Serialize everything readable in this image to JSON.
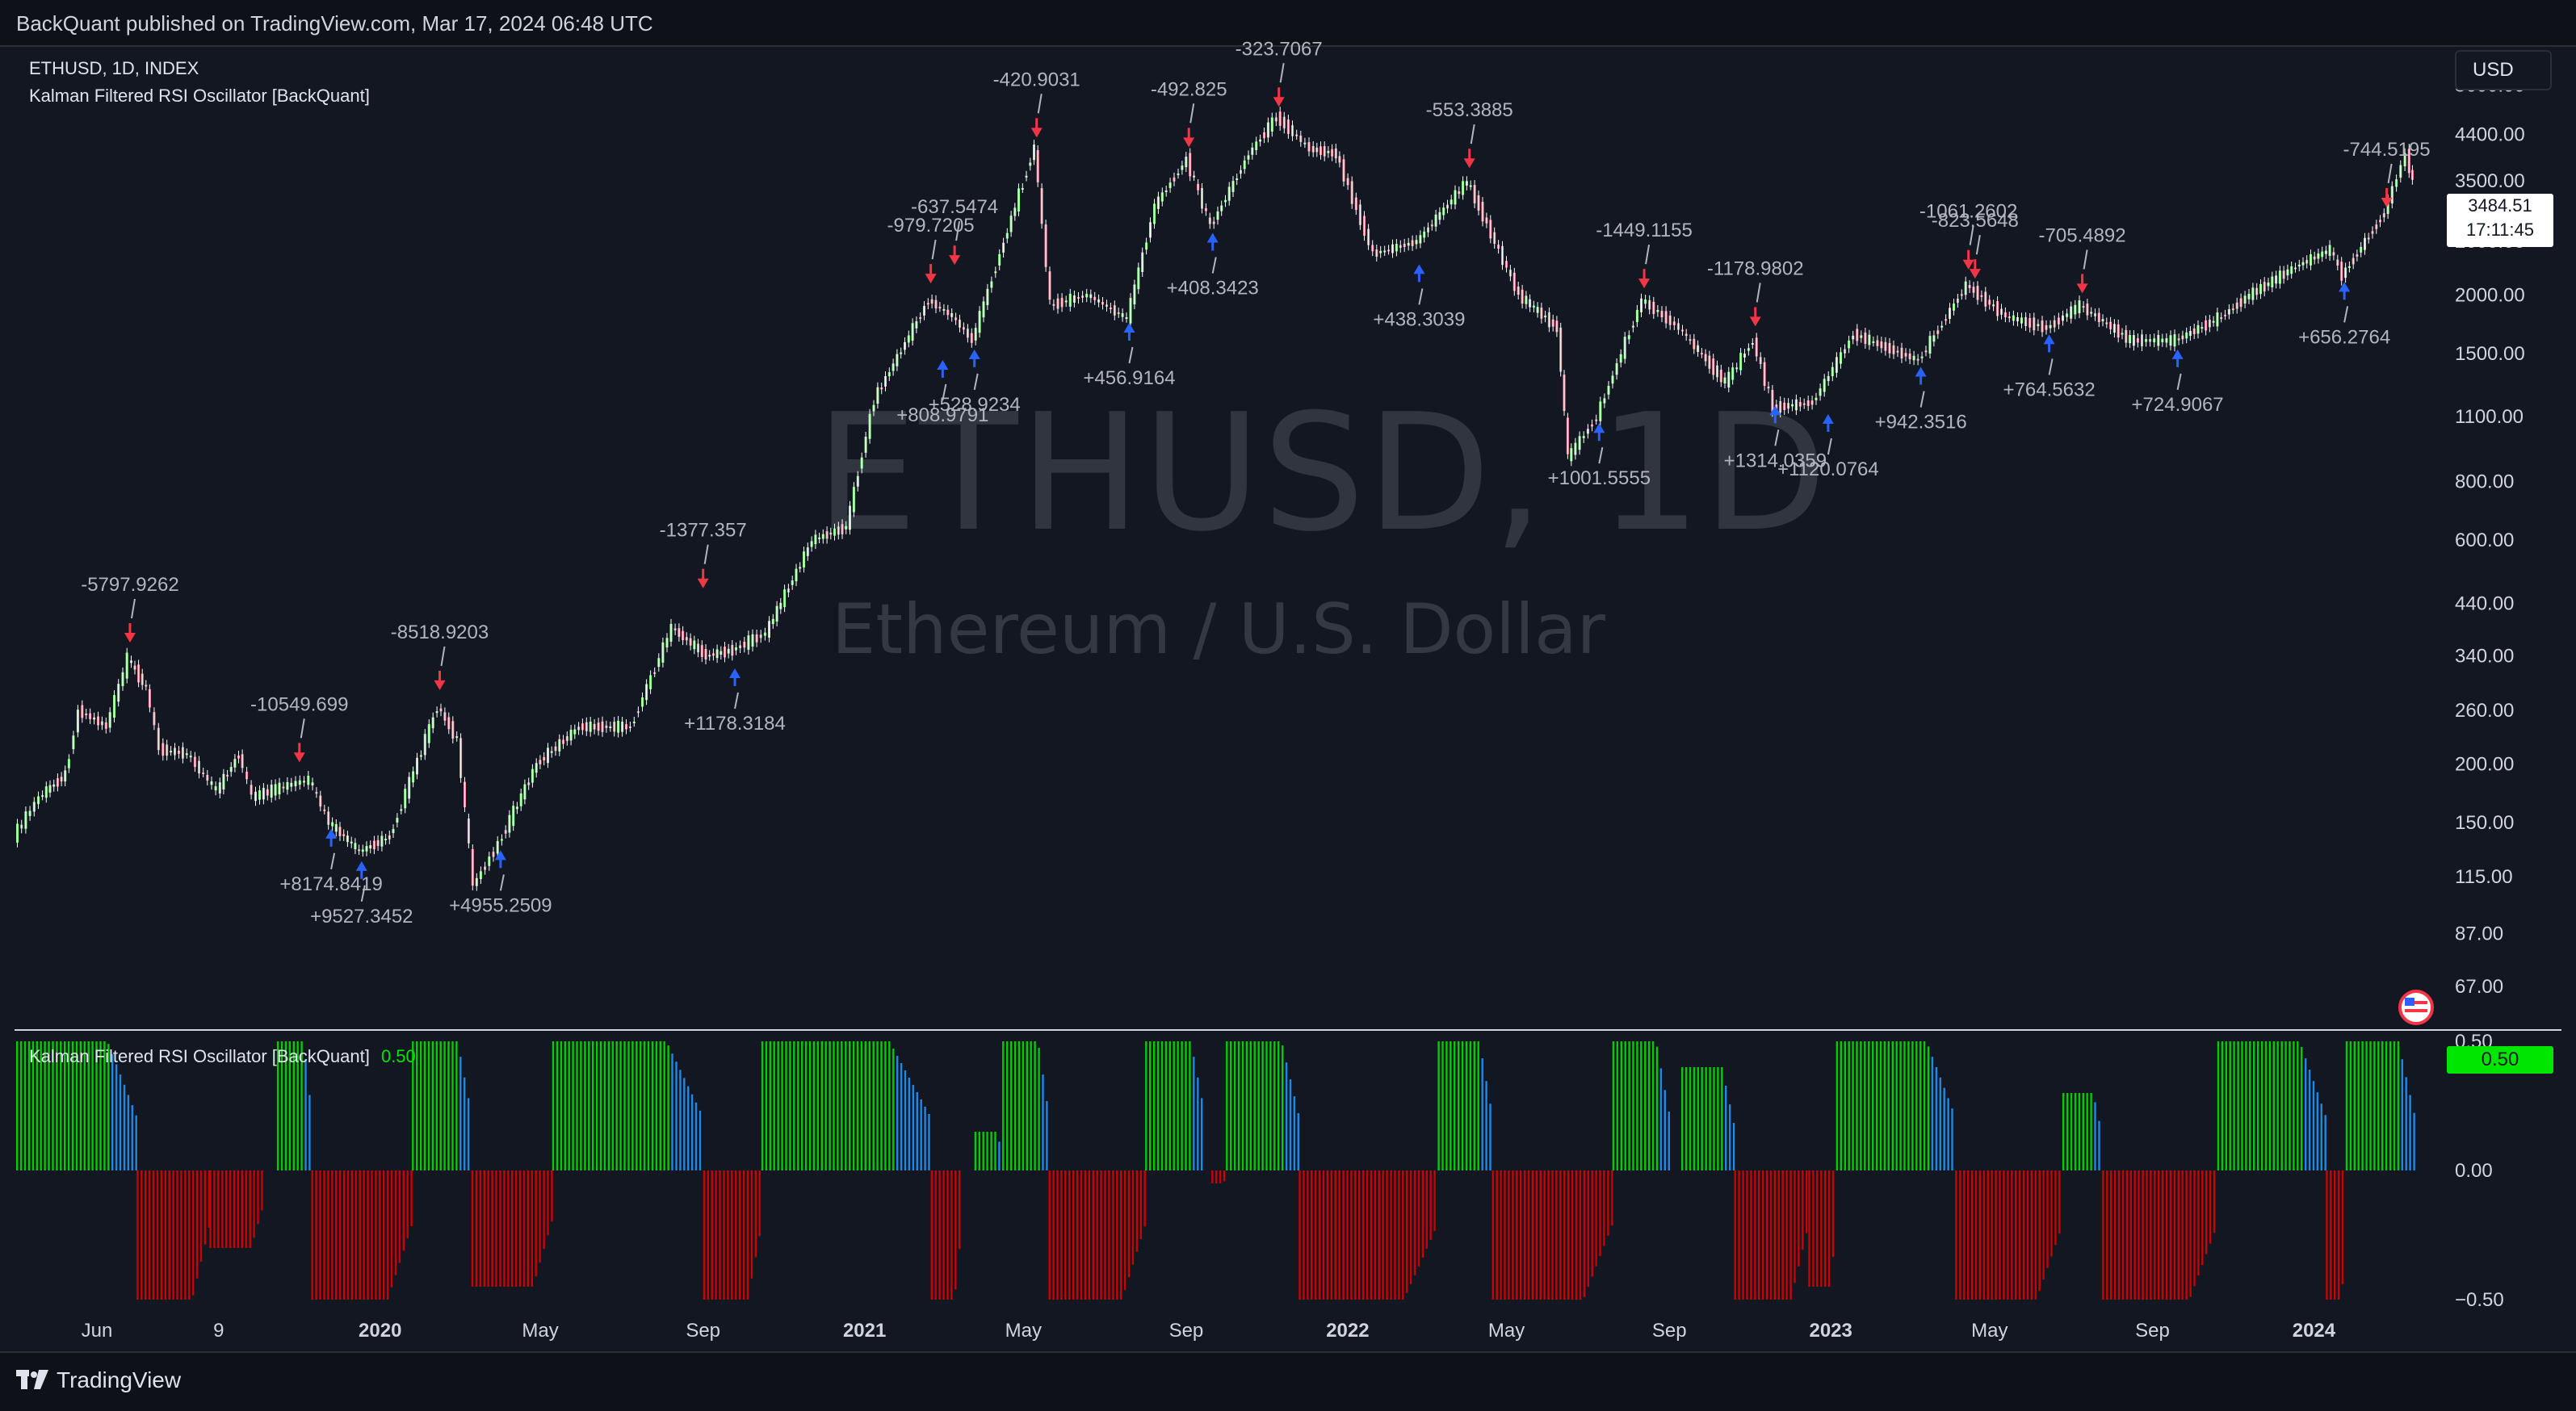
{
  "header": {
    "published": "BackQuant published on TradingView.com, Mar 17, 2024 06:48 UTC"
  },
  "legend": {
    "symbol": "ETHUSD, 1D, INDEX",
    "indicator": "Kalman Filtered RSI Oscillator [BackQuant]",
    "osc_title": "Kalman Filtered RSI Oscillator [BackQuant]",
    "osc_value": "0.50"
  },
  "currency_button": "USD",
  "watermark": {
    "title": "ETHUSD, 1D",
    "subtitle": "Ethereum / U.S. Dollar"
  },
  "last_price": {
    "value": "3484.51",
    "countdown": "17:11:45"
  },
  "footer": {
    "brand": "TradingView"
  },
  "colors": {
    "background": "#131722",
    "up_candle": "#8dff8d",
    "down_candle": "#ff8da0",
    "osc_positive": "#00cc00",
    "osc_negative": "#cc0000",
    "osc_transition": "#1e88e5",
    "buy_arrow": "#2962ff",
    "sell_arrow": "#f23645"
  },
  "chart_data": [
    {
      "type": "line",
      "title": "ETHUSD, 1D",
      "scale": "log",
      "ylim": [
        60,
        6200
      ],
      "y_ticks": [
        5600,
        4400,
        3500,
        2600,
        2000,
        1500,
        1100,
        800,
        600,
        440,
        340,
        260,
        200,
        150,
        115,
        87,
        67
      ],
      "y_tick_labels": [
        "5600.00",
        "4400.00",
        "3500.00",
        "2600.00",
        "2000.00",
        "1500.00",
        "1100.00",
        "800.00",
        "600.00",
        "440.00",
        "340.00",
        "260.00",
        "200.00",
        "150.00",
        "115.00",
        "87.00",
        "67.00"
      ],
      "x_tick_labels": [
        "Jun",
        "9",
        "2020",
        "May",
        "Sep",
        "2021",
        "May",
        "Sep",
        "2022",
        "May",
        "Sep",
        "2023",
        "May",
        "Sep",
        "2024"
      ],
      "x_tick_dates": [
        "2019-06-01",
        "2019-09-01",
        "2020-01-01",
        "2020-05-01",
        "2020-09-01",
        "2021-01-01",
        "2021-05-01",
        "2021-09-01",
        "2022-01-01",
        "2022-05-01",
        "2022-09-01",
        "2023-01-01",
        "2023-05-01",
        "2023-09-01",
        "2024-01-01"
      ],
      "x_range": [
        "2019-04-01",
        "2024-03-17"
      ],
      "series": [
        {
          "points": [
            [
              "2019-04-01",
              140
            ],
            [
              "2019-04-20",
              170
            ],
            [
              "2019-05-10",
              190
            ],
            [
              "2019-05-20",
              260
            ],
            [
              "2019-06-10",
              240
            ],
            [
              "2019-06-26",
              335
            ],
            [
              "2019-07-10",
              290
            ],
            [
              "2019-07-20",
              215
            ],
            [
              "2019-08-10",
              210
            ],
            [
              "2019-09-01",
              175
            ],
            [
              "2019-09-18",
              210
            ],
            [
              "2019-09-28",
              170
            ],
            [
              "2019-10-25",
              180
            ],
            [
              "2019-11-10",
              185
            ],
            [
              "2019-11-25",
              150
            ],
            [
              "2019-12-18",
              130
            ],
            [
              "2020-01-10",
              140
            ],
            [
              "2020-02-15",
              265
            ],
            [
              "2020-03-01",
              225
            ],
            [
              "2020-03-13",
              110
            ],
            [
              "2020-04-01",
              135
            ],
            [
              "2020-04-30",
              200
            ],
            [
              "2020-06-01",
              240
            ],
            [
              "2020-07-10",
              240
            ],
            [
              "2020-08-10",
              390
            ],
            [
              "2020-09-05",
              340
            ],
            [
              "2020-09-25",
              350
            ],
            [
              "2020-10-20",
              380
            ],
            [
              "2020-11-24",
              600
            ],
            [
              "2020-12-20",
              640
            ],
            [
              "2021-01-10",
              1200
            ],
            [
              "2021-02-20",
              1950
            ],
            [
              "2021-03-10",
              1800
            ],
            [
              "2021-03-25",
              1600
            ],
            [
              "2021-04-15",
              2450
            ],
            [
              "2021-05-11",
              4150
            ],
            [
              "2021-05-23",
              1900
            ],
            [
              "2021-06-20",
              2000
            ],
            [
              "2021-07-20",
              1780
            ],
            [
              "2021-08-10",
              3100
            ],
            [
              "2021-09-03",
              3900
            ],
            [
              "2021-09-21",
              2800
            ],
            [
              "2021-10-20",
              4000
            ],
            [
              "2021-11-10",
              4800
            ],
            [
              "2021-12-05",
              4100
            ],
            [
              "2021-12-25",
              4000
            ],
            [
              "2022-01-22",
              2450
            ],
            [
              "2022-02-24",
              2600
            ],
            [
              "2022-04-03",
              3500
            ],
            [
              "2022-05-12",
              2000
            ],
            [
              "2022-06-10",
              1700
            ],
            [
              "2022-06-18",
              900
            ],
            [
              "2022-07-10",
              1100
            ],
            [
              "2022-08-13",
              1950
            ],
            [
              "2022-09-10",
              1700
            ],
            [
              "2022-10-15",
              1300
            ],
            [
              "2022-11-05",
              1600
            ],
            [
              "2022-11-20",
              1150
            ],
            [
              "2022-12-20",
              1180
            ],
            [
              "2023-01-20",
              1650
            ],
            [
              "2023-03-10",
              1450
            ],
            [
              "2023-04-15",
              2100
            ],
            [
              "2023-05-15",
              1800
            ],
            [
              "2023-06-15",
              1700
            ],
            [
              "2023-07-10",
              1900
            ],
            [
              "2023-08-17",
              1600
            ],
            [
              "2023-09-20",
              1600
            ],
            [
              "2023-10-25",
              1800
            ],
            [
              "2023-11-15",
              2000
            ],
            [
              "2023-12-20",
              2300
            ],
            [
              "2024-01-15",
              2500
            ],
            [
              "2024-01-24",
              2200
            ],
            [
              "2024-02-25",
              3000
            ],
            [
              "2024-03-12",
              4000
            ],
            [
              "2024-03-17",
              3484
            ]
          ]
        }
      ],
      "annotations": [
        {
          "label": "-5797.9262",
          "date": "2019-06-26",
          "price": 360
        },
        {
          "label": "-10549.699",
          "date": "2019-11-01",
          "price": 200
        },
        {
          "label": "-8518.9203",
          "date": "2020-02-15",
          "price": 285
        },
        {
          "label": "-1377.357",
          "date": "2020-09-01",
          "price": 470
        },
        {
          "label": "-979.7205",
          "date": "2021-02-20",
          "price": 2100
        },
        {
          "label": "-637.5474",
          "date": "2021-03-10",
          "price": 2300
        },
        {
          "label": "-420.9031",
          "date": "2021-05-11",
          "price": 4300
        },
        {
          "label": "-492.825",
          "date": "2021-09-03",
          "price": 4100
        },
        {
          "label": "-323.7067",
          "date": "2021-11-10",
          "price": 5000
        },
        {
          "label": "-553.3885",
          "date": "2022-04-03",
          "price": 3700
        },
        {
          "label": "-1449.1155",
          "date": "2022-08-13",
          "price": 2050
        },
        {
          "label": "-1178.9802",
          "date": "2022-11-05",
          "price": 1700
        },
        {
          "label": "-1061.2602",
          "date": "2023-04-15",
          "price": 2250
        },
        {
          "label": "-823.5648",
          "date": "2023-04-20",
          "price": 2150
        },
        {
          "label": "-705.4892",
          "date": "2023-07-10",
          "price": 2000
        },
        {
          "label": "-744.5195",
          "date": "2024-02-25",
          "price": 3050
        },
        {
          "label": "+8174.8419",
          "date": "2019-11-25",
          "price": 150
        },
        {
          "label": "+9527.3452",
          "date": "2019-12-18",
          "price": 128
        },
        {
          "label": "+4955.2509",
          "date": "2020-04-01",
          "price": 135
        },
        {
          "label": "+1178.3184",
          "date": "2020-09-25",
          "price": 330
        },
        {
          "label": "+528.9234",
          "date": "2021-03-25",
          "price": 1580
        },
        {
          "label": "+808.9791",
          "date": "2021-03-01",
          "price": 1500
        },
        {
          "label": "+456.9164",
          "date": "2021-07-20",
          "price": 1800
        },
        {
          "label": "+408.3423",
          "date": "2021-09-21",
          "price": 2800
        },
        {
          "label": "+438.3039",
          "date": "2022-02-24",
          "price": 2400
        },
        {
          "label": "+1001.5555",
          "date": "2022-07-10",
          "price": 1100
        },
        {
          "label": "+1314.0359",
          "date": "2022-11-20",
          "price": 1200
        },
        {
          "label": "+1120.0764",
          "date": "2022-12-30",
          "price": 1150
        },
        {
          "label": "+942.3516",
          "date": "2023-03-10",
          "price": 1450
        },
        {
          "label": "+764.5632",
          "date": "2023-06-15",
          "price": 1700
        },
        {
          "label": "+724.9067",
          "date": "2023-09-20",
          "price": 1580
        },
        {
          "label": "+656.2764",
          "date": "2024-01-24",
          "price": 2200
        }
      ]
    },
    {
      "type": "bar",
      "title": "Kalman Filtered RSI Oscillator [BackQuant]",
      "ylim": [
        -0.5,
        0.5
      ],
      "y_ticks": [
        0.5,
        0.0,
        -0.5
      ],
      "y_tick_labels": [
        "0.50",
        "0.00",
        "−0.50"
      ],
      "segments": [
        {
          "start": "2019-04-01",
          "end": "2019-07-01",
          "value": 0.5
        },
        {
          "start": "2019-07-01",
          "end": "2019-08-25",
          "value": -0.5
        },
        {
          "start": "2019-08-25",
          "end": "2019-10-05",
          "value": -0.3
        },
        {
          "start": "2019-10-15",
          "end": "2019-11-10",
          "value": 0.5
        },
        {
          "start": "2019-11-10",
          "end": "2020-01-25",
          "value": -0.5
        },
        {
          "start": "2020-01-25",
          "end": "2020-03-10",
          "value": 0.5
        },
        {
          "start": "2020-03-10",
          "end": "2020-05-10",
          "value": -0.45
        },
        {
          "start": "2020-05-10",
          "end": "2020-09-01",
          "value": 0.5
        },
        {
          "start": "2020-09-01",
          "end": "2020-10-15",
          "value": -0.5
        },
        {
          "start": "2020-10-15",
          "end": "2021-02-20",
          "value": 0.5
        },
        {
          "start": "2021-02-20",
          "end": "2021-03-15",
          "value": -0.5
        },
        {
          "start": "2021-03-25",
          "end": "2021-04-15",
          "value": 0.15
        },
        {
          "start": "2021-04-15",
          "end": "2021-05-20",
          "value": 0.5
        },
        {
          "start": "2021-05-20",
          "end": "2021-08-01",
          "value": -0.5
        },
        {
          "start": "2021-08-01",
          "end": "2021-09-15",
          "value": 0.5
        },
        {
          "start": "2021-09-20",
          "end": "2021-10-01",
          "value": -0.05
        },
        {
          "start": "2021-10-01",
          "end": "2021-11-25",
          "value": 0.5
        },
        {
          "start": "2021-11-25",
          "end": "2022-03-10",
          "value": -0.5
        },
        {
          "start": "2022-03-10",
          "end": "2022-04-20",
          "value": 0.5
        },
        {
          "start": "2022-04-20",
          "end": "2022-07-20",
          "value": -0.5
        },
        {
          "start": "2022-07-20",
          "end": "2022-09-01",
          "value": 0.5
        },
        {
          "start": "2022-09-10",
          "end": "2022-10-20",
          "value": 0.4
        },
        {
          "start": "2022-10-20",
          "end": "2022-12-15",
          "value": -0.5
        },
        {
          "start": "2022-12-15",
          "end": "2023-01-05",
          "value": -0.45
        },
        {
          "start": "2023-01-05",
          "end": "2023-04-05",
          "value": 0.5
        },
        {
          "start": "2023-04-05",
          "end": "2023-06-25",
          "value": -0.5
        },
        {
          "start": "2023-06-25",
          "end": "2023-07-25",
          "value": 0.3
        },
        {
          "start": "2023-07-25",
          "end": "2023-10-20",
          "value": -0.5
        },
        {
          "start": "2023-10-20",
          "end": "2024-01-10",
          "value": 0.5
        },
        {
          "start": "2024-01-10",
          "end": "2024-01-25",
          "value": -0.5
        },
        {
          "start": "2024-01-25",
          "end": "2024-03-17",
          "value": 0.5
        }
      ]
    }
  ]
}
